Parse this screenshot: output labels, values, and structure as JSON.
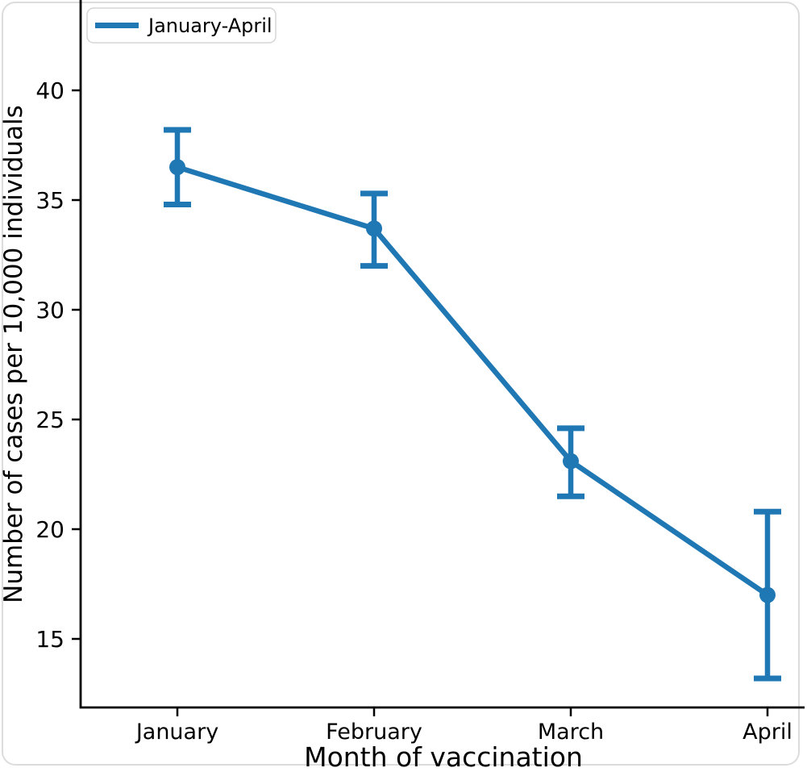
{
  "figure": {
    "colors": {
      "series": "#1f77b4",
      "axis": "#000000",
      "legend_border": "#d5d5d5",
      "card_border": "#dcdcdc",
      "card_fill": "#ffffff"
    }
  },
  "chart_data": {
    "type": "line",
    "title": "",
    "xlabel": "Month of vaccination",
    "ylabel": "Number of cases per 10,000 individuals",
    "categories": [
      "January",
      "February",
      "March",
      "April"
    ],
    "series": [
      {
        "name": "January-April",
        "values": [
          36.5,
          33.7,
          23.1,
          17.0
        ],
        "error_low": [
          34.8,
          32.0,
          21.5,
          13.2
        ],
        "error_high": [
          38.2,
          35.3,
          24.6,
          20.8
        ]
      }
    ],
    "yticks": [
      15,
      20,
      25,
      30,
      35,
      40
    ],
    "ylim_visible": [
      11.9,
      44.2
    ],
    "grid": false,
    "legend_position": "upper-left",
    "error_bars": true,
    "marker": "circle"
  }
}
